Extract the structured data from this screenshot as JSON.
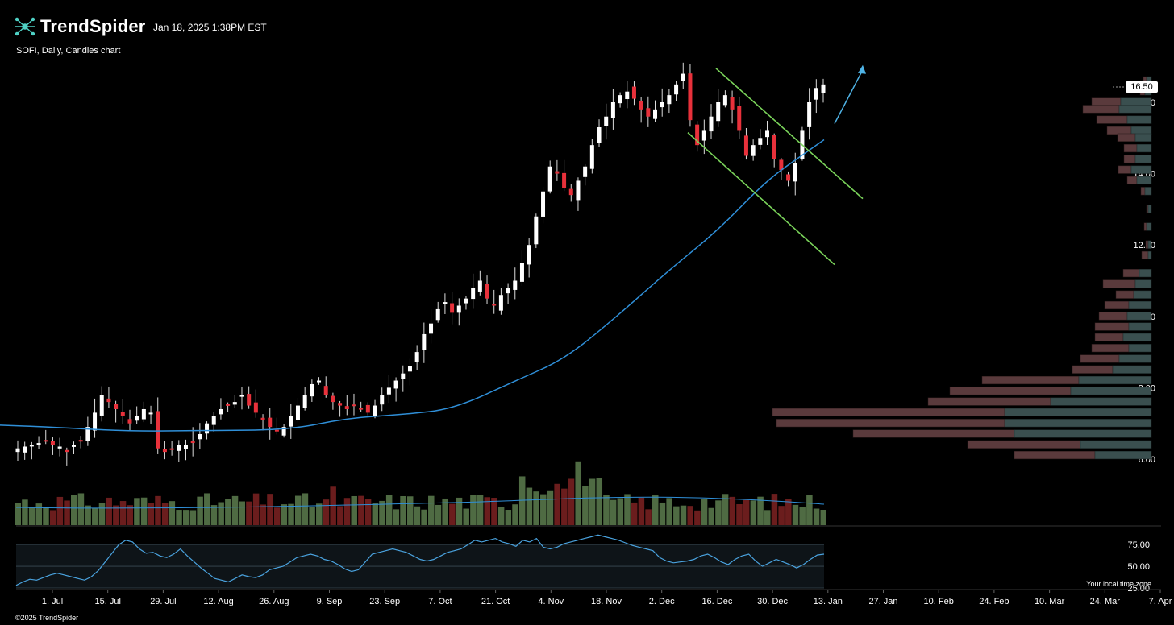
{
  "header": {
    "brand": "TrendSpider",
    "timestamp": "Jan 18, 2025 1:38PM EST",
    "subtitle": "SOFI, Daily, Candles chart"
  },
  "footer": {
    "copyright": "©2025 TrendSpider",
    "timezone_note": "Your local time zone"
  },
  "colors": {
    "background": "#000000",
    "up_candle": "#ffffff",
    "down_candle": "#e8313b",
    "moving_average": "#2f8fd8",
    "channel": "#7ad35a",
    "arrow": "#4fb3e6",
    "volume_up": "#4f6b43",
    "volume_down": "#6b1d1d",
    "rsi_line": "#4aa3df"
  },
  "chart_data": {
    "type": "candlestick",
    "symbol": "SOFI",
    "interval": "Daily",
    "last_price_label": "16.50",
    "y_ticks": [
      "6.00",
      "8.00",
      "10.00",
      "12.00",
      "14.00",
      "16.00"
    ],
    "ylim": [
      5.6,
      17.3
    ],
    "x_ticks": [
      "1. Jul",
      "15. Jul",
      "29. Jul",
      "12. Aug",
      "26. Aug",
      "9. Sep",
      "23. Sep",
      "7. Oct",
      "21. Oct",
      "4. Nov",
      "18. Nov",
      "2. Dec",
      "16. Dec",
      "30. Dec",
      "13. Jan",
      "27. Jan",
      "10. Feb",
      "24. Feb",
      "10. Mar",
      "24. Mar",
      "7. Apr"
    ],
    "close_path": [
      6.3,
      6.35,
      6.4,
      6.45,
      6.5,
      6.4,
      6.35,
      6.2,
      6.4,
      6.5,
      6.9,
      7.3,
      7.8,
      7.6,
      7.4,
      7.2,
      7.0,
      7.2,
      7.4,
      7.3,
      6.3,
      6.2,
      6.3,
      6.4,
      6.4,
      6.45,
      6.7,
      7.0,
      7.2,
      7.4,
      7.5,
      7.6,
      7.8,
      7.5,
      7.3,
      7.1,
      6.9,
      6.8,
      6.9,
      7.2,
      7.5,
      7.8,
      8.1,
      8.2,
      7.8,
      7.6,
      7.5,
      7.4,
      7.5,
      7.4,
      7.3,
      7.5,
      7.8,
      8.0,
      8.2,
      8.4,
      8.6,
      9.0,
      9.5,
      9.8,
      10.2,
      10.4,
      10.1,
      10.3,
      10.5,
      10.8,
      11.0,
      10.5,
      10.3,
      10.6,
      10.8,
      11.0,
      11.5,
      12.0,
      12.8,
      13.5,
      14.2,
      14.0,
      13.6,
      13.4,
      13.8,
      14.2,
      14.8,
      15.3,
      15.6,
      16.0,
      16.2,
      16.3,
      16.1,
      15.8,
      15.6,
      15.8,
      16.0,
      16.2,
      16.5,
      16.8,
      15.5,
      14.8,
      15.2,
      15.6,
      16.0,
      16.2,
      15.8,
      15.2,
      14.5,
      14.8,
      15.0,
      15.2,
      14.4,
      14.1,
      13.8,
      14.3,
      15.2,
      16.0,
      16.4,
      16.5
    ],
    "moving_average": [
      {
        "x": 0,
        "y": 6.95
      },
      {
        "x": 60,
        "y": 6.9
      },
      {
        "x": 160,
        "y": 6.78
      },
      {
        "x": 250,
        "y": 6.8
      },
      {
        "x": 360,
        "y": 6.82
      },
      {
        "x": 430,
        "y": 7.15
      },
      {
        "x": 500,
        "y": 7.25
      },
      {
        "x": 562,
        "y": 7.4
      },
      {
        "x": 640,
        "y": 8.2
      },
      {
        "x": 700,
        "y": 8.8
      },
      {
        "x": 760,
        "y": 9.9
      },
      {
        "x": 830,
        "y": 11.3
      },
      {
        "x": 890,
        "y": 12.4
      },
      {
        "x": 950,
        "y": 13.8
      },
      {
        "x": 1000,
        "y": 14.6
      },
      {
        "x": 1022,
        "y": 14.95
      }
    ],
    "channel_upper": [
      {
        "x": 888,
        "y": 16.95
      },
      {
        "x": 1070,
        "y": 13.3
      }
    ],
    "channel_lower": [
      {
        "x": 853,
        "y": 15.15
      },
      {
        "x": 1035,
        "y": 11.45
      }
    ],
    "arrow": [
      {
        "x": 1035,
        "y": 15.4
      },
      {
        "x": 1070,
        "y": 17.0
      }
    ],
    "volume_profile": [
      {
        "price": 16.6,
        "buy": 6,
        "sell": 4
      },
      {
        "price": 16.3,
        "buy": 8,
        "sell": 6
      },
      {
        "price": 16.0,
        "buy": 38,
        "sell": 36
      },
      {
        "price": 15.8,
        "buy": 40,
        "sell": 45
      },
      {
        "price": 15.5,
        "buy": 30,
        "sell": 38
      },
      {
        "price": 15.2,
        "buy": 25,
        "sell": 30
      },
      {
        "price": 15.0,
        "buy": 20,
        "sell": 22
      },
      {
        "price": 14.7,
        "buy": 18,
        "sell": 16
      },
      {
        "price": 14.4,
        "buy": 20,
        "sell": 14
      },
      {
        "price": 14.1,
        "buy": 25,
        "sell": 16
      },
      {
        "price": 13.8,
        "buy": 18,
        "sell": 12
      },
      {
        "price": 13.5,
        "buy": 8,
        "sell": 5
      },
      {
        "price": 13.0,
        "buy": 4,
        "sell": 2
      },
      {
        "price": 12.5,
        "buy": 6,
        "sell": 3
      },
      {
        "price": 12.0,
        "buy": 4,
        "sell": 3
      },
      {
        "price": 11.7,
        "buy": 4,
        "sell": 8
      },
      {
        "price": 11.2,
        "buy": 15,
        "sell": 20
      },
      {
        "price": 10.9,
        "buy": 20,
        "sell": 40
      },
      {
        "price": 10.6,
        "buy": 22,
        "sell": 22
      },
      {
        "price": 10.3,
        "buy": 28,
        "sell": 30
      },
      {
        "price": 10.0,
        "buy": 30,
        "sell": 35
      },
      {
        "price": 9.7,
        "buy": 28,
        "sell": 42
      },
      {
        "price": 9.4,
        "buy": 35,
        "sell": 35
      },
      {
        "price": 9.1,
        "buy": 28,
        "sell": 46
      },
      {
        "price": 8.8,
        "buy": 40,
        "sell": 48
      },
      {
        "price": 8.5,
        "buy": 48,
        "sell": 50
      },
      {
        "price": 8.2,
        "buy": 90,
        "sell": 120
      },
      {
        "price": 7.9,
        "buy": 100,
        "sell": 150
      },
      {
        "price": 7.6,
        "buy": 125,
        "sell": 152
      },
      {
        "price": 7.3,
        "buy": 182,
        "sell": 288
      },
      {
        "price": 7.0,
        "buy": 182,
        "sell": 283
      },
      {
        "price": 6.7,
        "buy": 170,
        "sell": 200
      },
      {
        "price": 6.4,
        "buy": 88,
        "sell": 140
      },
      {
        "price": 6.1,
        "buy": 70,
        "sell": 100
      }
    ],
    "volume_axis_max": 100,
    "volume_ma": 30,
    "rsi": {
      "ticks": [
        "75.00",
        "50.00",
        "25.00"
      ],
      "ylim": [
        25,
        90
      ],
      "values": [
        28,
        32,
        35,
        34,
        37,
        40,
        42,
        40,
        38,
        36,
        34,
        38,
        45,
        55,
        65,
        75,
        80,
        78,
        70,
        65,
        66,
        62,
        60,
        64,
        70,
        62,
        55,
        48,
        42,
        36,
        34,
        32,
        36,
        40,
        38,
        37,
        40,
        46,
        48,
        50,
        55,
        60,
        62,
        64,
        62,
        58,
        56,
        52,
        47,
        44,
        46,
        55,
        64,
        66,
        68,
        70,
        68,
        66,
        62,
        58,
        56,
        58,
        62,
        66,
        68,
        70,
        75,
        80,
        78,
        80,
        82,
        78,
        76,
        73,
        80,
        78,
        82,
        72,
        70,
        72,
        76,
        78,
        80,
        82,
        84,
        86,
        84,
        82,
        80,
        77,
        74,
        72,
        70,
        68,
        60,
        56,
        54,
        55,
        56,
        58,
        62,
        64,
        60,
        55,
        52,
        58,
        62,
        64,
        56,
        50,
        54,
        58,
        55,
        52,
        48,
        52,
        58,
        63,
        64
      ]
    }
  }
}
